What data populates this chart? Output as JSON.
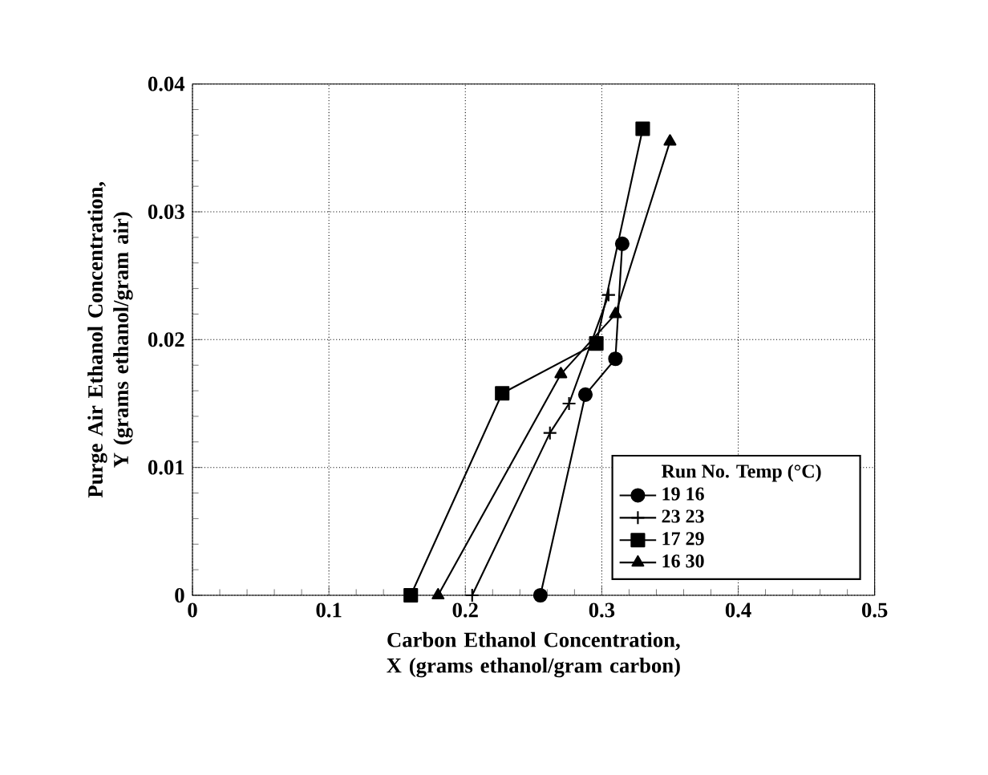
{
  "chart_data": {
    "type": "line",
    "xlabel": "Carbon Ethanol Concentration,  X (grams ethanol/gram carbon)",
    "ylabel": "Purge Air Ethanol Concentration,  Y (grams ethanol/gram air)",
    "legend_title": "Run No.   Temp (°C)",
    "xlim": [
      0,
      0.5
    ],
    "ylim": [
      0,
      0.04
    ],
    "xticks": [
      0,
      0.1,
      0.2,
      0.3,
      0.4,
      0.5
    ],
    "yticks": [
      0,
      0.01,
      0.02,
      0.03,
      0.04
    ],
    "grid": true,
    "legend": "bottom right",
    "line_style": "solid",
    "series": [
      {
        "name": "19   16",
        "color": "#000000",
        "marker": "circle",
        "x": [
          0.255,
          0.288,
          0.31,
          0.315
        ],
        "values": [
          0,
          0.0157,
          0.0185,
          0.0275
        ]
      },
      {
        "name": "23   23",
        "color": "#000000",
        "marker": "cross",
        "x": [
          0.205,
          0.262,
          0.276,
          0.3,
          0.305
        ],
        "values": [
          0,
          0.0127,
          0.015,
          null,
          0.0235
        ]
      },
      {
        "name": "17   29",
        "color": "#000000",
        "marker": "square",
        "x": [
          0.16,
          0.227,
          0.296,
          0.33
        ],
        "values": [
          0,
          0.0158,
          0.0197,
          0.0365
        ]
      },
      {
        "name": "16   30",
        "color": "#000000",
        "marker": "triangle",
        "x": [
          0.18,
          0.27,
          0.31,
          0.35
        ],
        "values": [
          0,
          0.0173,
          0.022,
          0.0355
        ]
      }
    ]
  }
}
